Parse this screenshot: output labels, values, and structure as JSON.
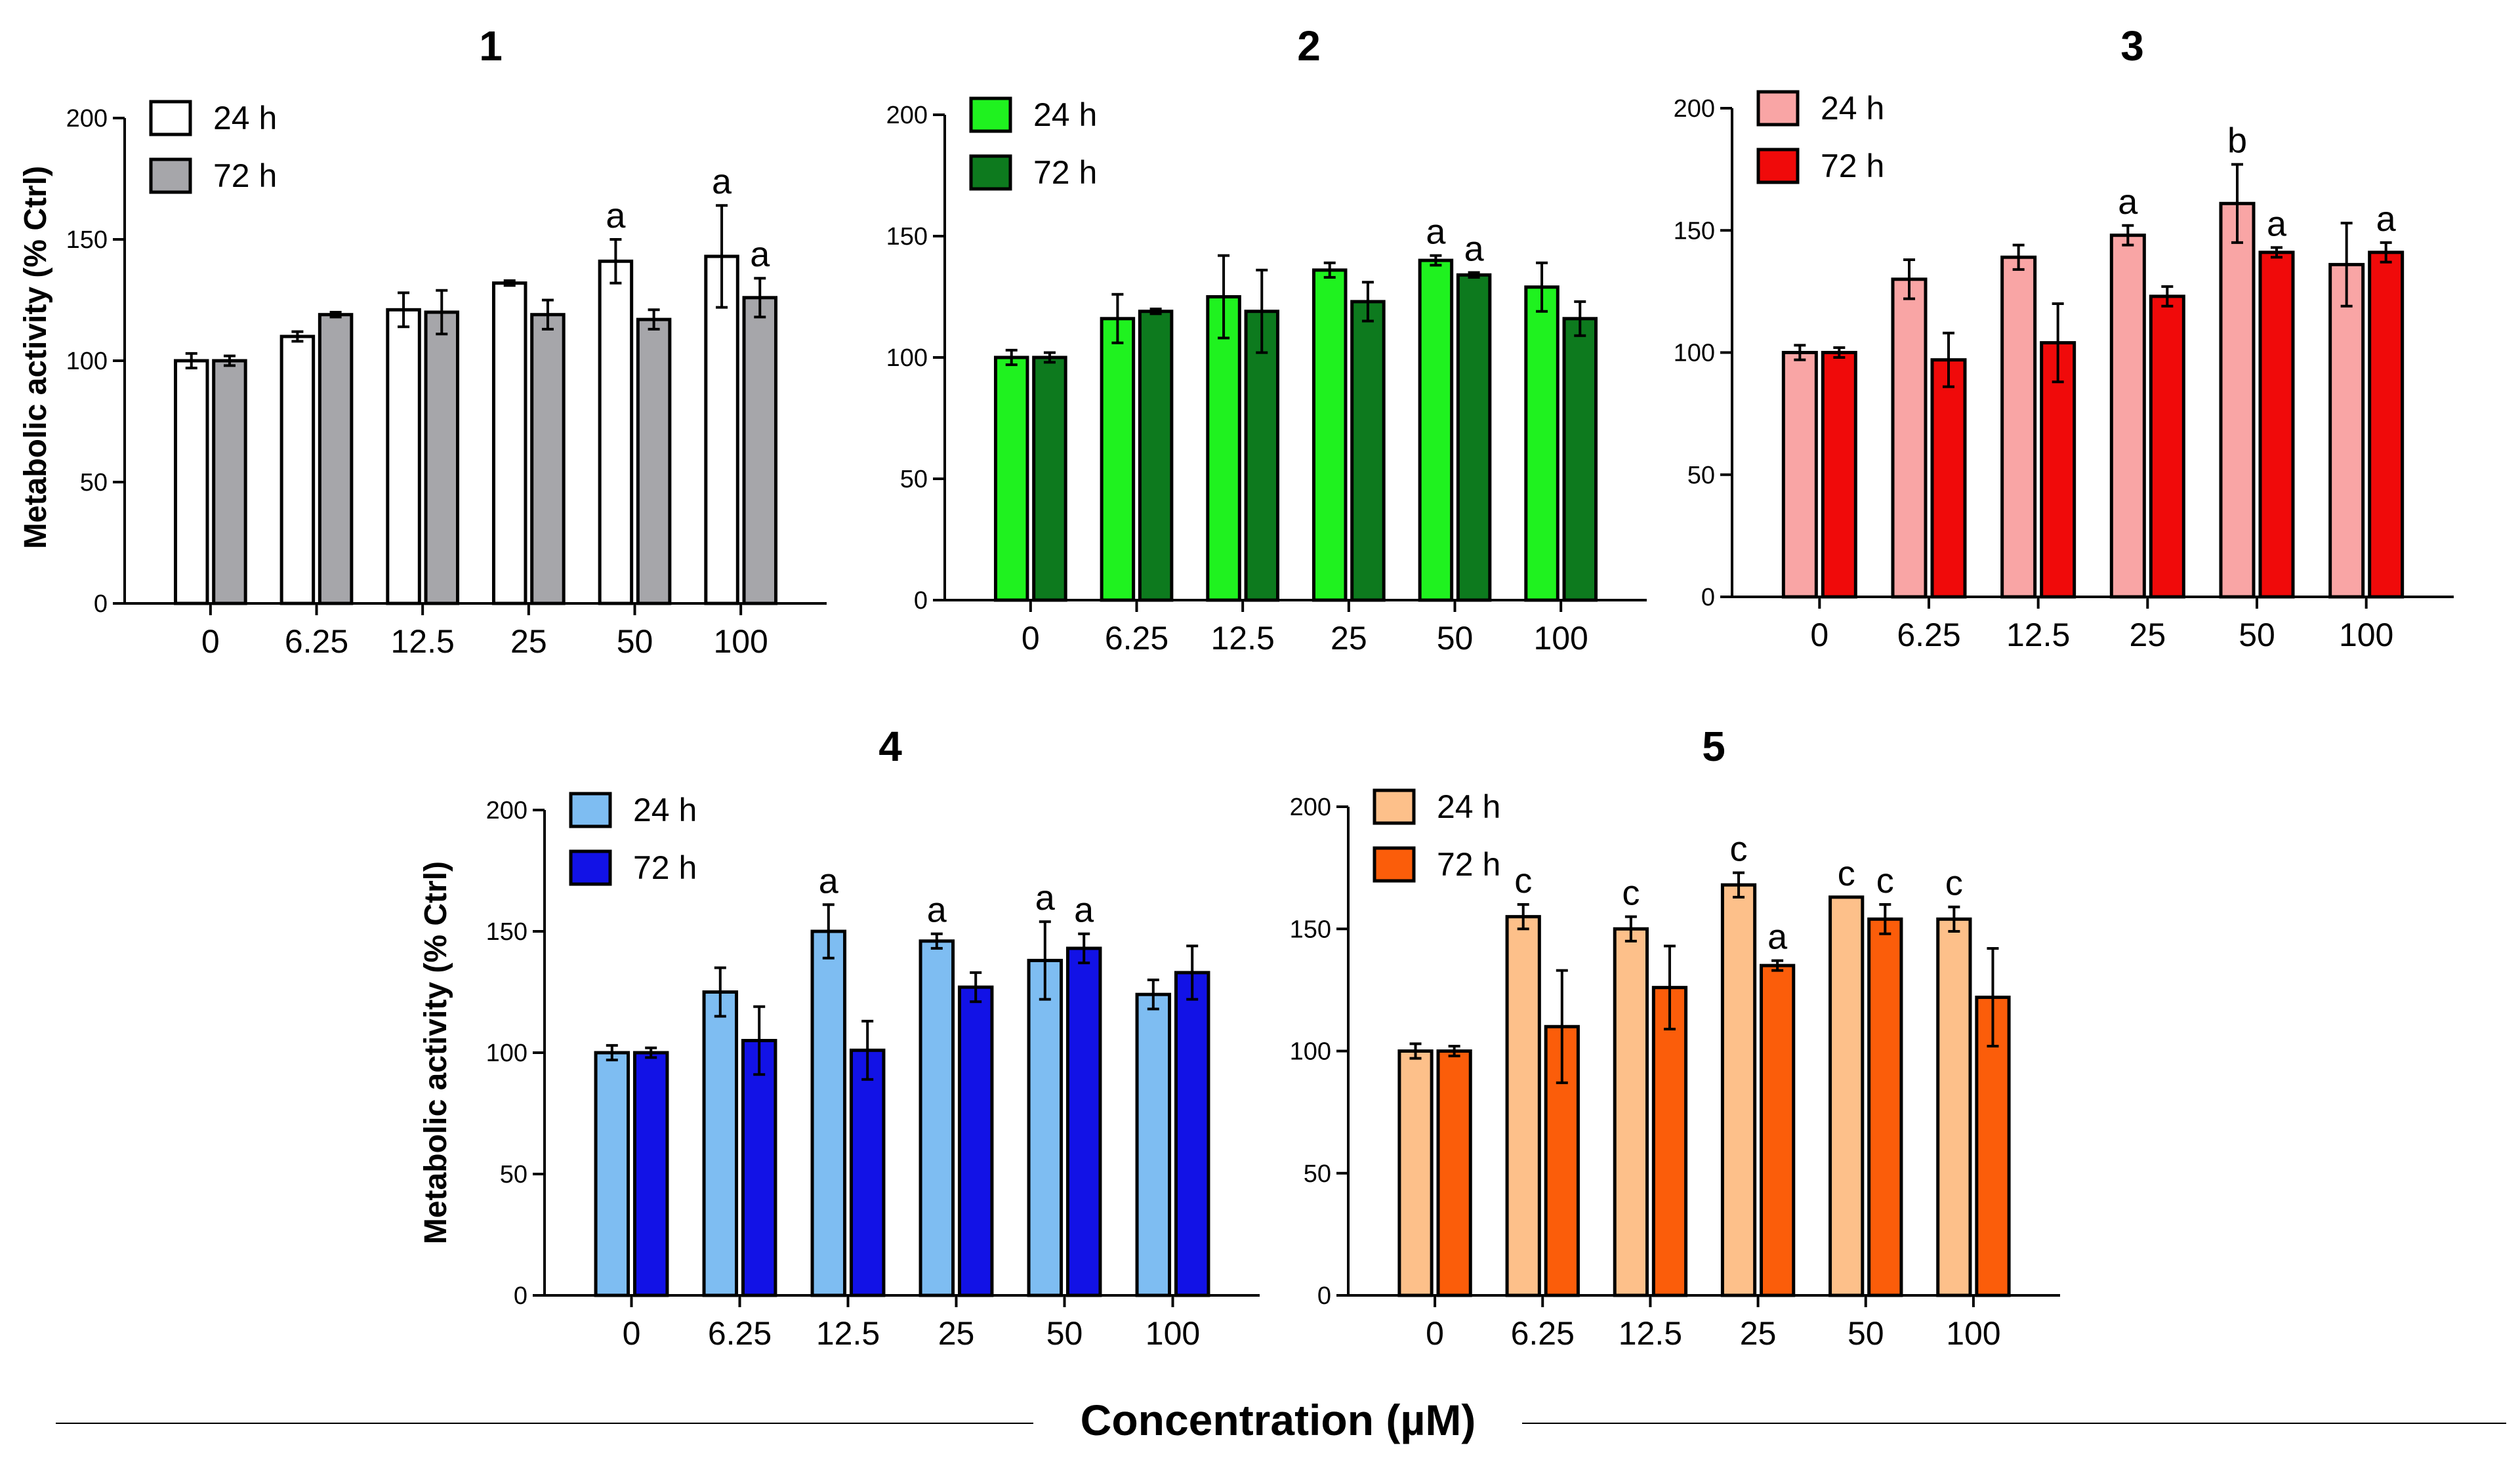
{
  "figure": {
    "xlabel": "Concentration (µM)",
    "ylabel": "Metabolic activity (% Ctrl)"
  },
  "chart_data": [
    {
      "type": "bar",
      "title": "1",
      "categories": [
        "0",
        "6.25",
        "12.5",
        "25",
        "50",
        "100"
      ],
      "ylabel": "Metabolic activity (% Ctrl)",
      "xlabel": "Concentration (µM)",
      "ylim": [
        0,
        200
      ],
      "yticks": [
        "0",
        "50",
        "100",
        "150",
        "200"
      ],
      "legend_position": "top-left",
      "series": [
        {
          "name": "24 h",
          "color": "#ffffff",
          "values": [
            100,
            110,
            121,
            132,
            141,
            143
          ],
          "errors": [
            3,
            2,
            7,
            1,
            9,
            21
          ],
          "annotations": [
            "",
            "",
            "",
            "",
            "a",
            "a"
          ]
        },
        {
          "name": "72 h",
          "color": "#a6a6aa",
          "values": [
            100,
            119,
            120,
            119,
            117,
            126
          ],
          "errors": [
            2,
            1,
            9,
            6,
            4,
            8
          ],
          "annotations": [
            "",
            "",
            "",
            "",
            "",
            "a"
          ]
        }
      ]
    },
    {
      "type": "bar",
      "title": "2",
      "categories": [
        "0",
        "6.25",
        "12.5",
        "25",
        "50",
        "100"
      ],
      "ylabel": "",
      "xlabel": "Concentration (µM)",
      "ylim": [
        0,
        200
      ],
      "yticks": [
        "0",
        "50",
        "100",
        "150",
        "200"
      ],
      "legend_position": "top-left",
      "series": [
        {
          "name": "24 h",
          "color": "#1ff21f",
          "values": [
            100,
            116,
            125,
            136,
            140,
            129
          ],
          "errors": [
            3,
            10,
            17,
            3,
            2,
            10
          ],
          "annotations": [
            "",
            "",
            "",
            "",
            "a",
            ""
          ]
        },
        {
          "name": "72 h",
          "color": "#0d7a1e",
          "values": [
            100,
            119,
            119,
            123,
            134,
            116
          ],
          "errors": [
            2,
            1,
            17,
            8,
            1,
            7
          ],
          "annotations": [
            "",
            "",
            "",
            "",
            "a",
            ""
          ]
        }
      ]
    },
    {
      "type": "bar",
      "title": "3",
      "categories": [
        "0",
        "6.25",
        "12.5",
        "25",
        "50",
        "100"
      ],
      "ylabel": "",
      "xlabel": "Concentration (µM)",
      "ylim": [
        0,
        200
      ],
      "yticks": [
        "0",
        "50",
        "100",
        "150",
        "200"
      ],
      "legend_position": "top-left",
      "series": [
        {
          "name": "24 h",
          "color": "#f9a5a5",
          "values": [
            100,
            130,
            139,
            148,
            161,
            136
          ],
          "errors": [
            3,
            8,
            5,
            4,
            16,
            17
          ],
          "annotations": [
            "",
            "",
            "",
            "a",
            "b",
            ""
          ]
        },
        {
          "name": "72 h",
          "color": "#f00a0a",
          "values": [
            100,
            97,
            104,
            123,
            141,
            141
          ],
          "errors": [
            2,
            11,
            16,
            4,
            2,
            4
          ],
          "annotations": [
            "",
            "",
            "",
            "",
            "a",
            "a"
          ]
        }
      ]
    },
    {
      "type": "bar",
      "title": "4",
      "categories": [
        "0",
        "6.25",
        "12.5",
        "25",
        "50",
        "100"
      ],
      "ylabel": "Metabolic activity (% Ctrl)",
      "xlabel": "Concentration (µM)",
      "ylim": [
        0,
        200
      ],
      "yticks": [
        "0",
        "50",
        "100",
        "150",
        "200"
      ],
      "legend_position": "top-left",
      "series": [
        {
          "name": "24 h",
          "color": "#7ebdf2",
          "values": [
            100,
            125,
            150,
            146,
            138,
            124
          ],
          "errors": [
            3,
            10,
            11,
            3,
            16,
            6
          ],
          "annotations": [
            "",
            "",
            "a",
            "a",
            "a",
            ""
          ]
        },
        {
          "name": "72 h",
          "color": "#1212e6",
          "values": [
            100,
            105,
            101,
            127,
            143,
            133
          ],
          "errors": [
            2,
            14,
            12,
            6,
            6,
            11
          ],
          "annotations": [
            "",
            "",
            "",
            "",
            "a",
            ""
          ]
        }
      ]
    },
    {
      "type": "bar",
      "title": "5",
      "categories": [
        "0",
        "6.25",
        "12.5",
        "25",
        "50",
        "100"
      ],
      "ylabel": "",
      "xlabel": "Concentration (µM)",
      "ylim": [
        0,
        200
      ],
      "yticks": [
        "0",
        "50",
        "100",
        "150",
        "200"
      ],
      "legend_position": "top-left",
      "series": [
        {
          "name": "24 h",
          "color": "#fdc08a",
          "values": [
            100,
            155,
            150,
            168,
            163,
            154
          ],
          "errors": [
            3,
            5,
            5,
            5,
            0,
            5
          ],
          "annotations": [
            "",
            "c",
            "c",
            "c",
            "c",
            "c"
          ]
        },
        {
          "name": "72 h",
          "color": "#fb5d0a",
          "values": [
            100,
            110,
            126,
            135,
            154,
            122
          ],
          "errors": [
            2,
            23,
            17,
            2,
            6,
            20
          ],
          "annotations": [
            "",
            "",
            "",
            "a",
            "c",
            ""
          ]
        }
      ]
    }
  ]
}
